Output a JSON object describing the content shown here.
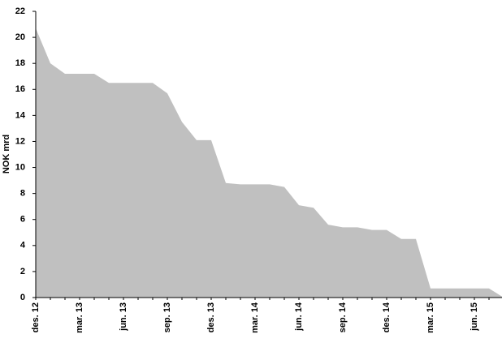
{
  "chart_data": {
    "type": "area",
    "y_label": "NOK mrd",
    "categories": [
      "des. 12",
      null,
      null,
      "mar. 13",
      null,
      null,
      "jun. 13",
      null,
      null,
      "sep. 13",
      null,
      null,
      "des. 13",
      null,
      null,
      "mar. 14",
      null,
      null,
      "jun. 14",
      null,
      null,
      "sep. 14",
      null,
      null,
      "des. 14",
      null,
      null,
      "mar. 15",
      null,
      null,
      "jun. 15",
      null,
      null
    ],
    "values": [
      20.7,
      18.0,
      17.2,
      17.2,
      17.2,
      16.5,
      16.5,
      16.5,
      16.5,
      15.7,
      13.5,
      12.1,
      12.1,
      8.8,
      8.7,
      8.7,
      8.7,
      8.5,
      7.1,
      6.9,
      5.6,
      5.4,
      5.4,
      5.2,
      5.2,
      4.5,
      4.5,
      0.7,
      0.7,
      0.7,
      0.7,
      0.7,
      0
    ],
    "color": "#c0c0c0",
    "ylim": [
      0,
      22
    ],
    "yticks": [
      0,
      2,
      4,
      6,
      8,
      10,
      12,
      14,
      16,
      18,
      20,
      22
    ]
  }
}
